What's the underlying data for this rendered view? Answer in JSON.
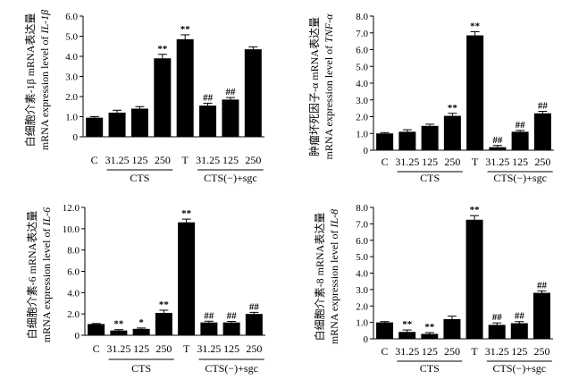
{
  "chart_data": [
    {
      "type": "bar",
      "id": "il1b",
      "ylabel_cn": "白细胞介素-1β mRNA表达量",
      "ylabel_en_prefix": "mRNA expression level of ",
      "ylabel_en_gene": "IL-1β",
      "ylim": [
        0,
        6
      ],
      "yticks": [
        "0",
        "1.0",
        "2.0",
        "3.0",
        "4.0",
        "5.0",
        "6.0"
      ],
      "categories": [
        "C",
        "31.25",
        "125",
        "250",
        "T",
        "31.25",
        "125",
        "250"
      ],
      "values": [
        0.95,
        1.2,
        1.4,
        3.9,
        4.85,
        1.55,
        1.85,
        4.35
      ],
      "errors": [
        0.05,
        0.12,
        0.1,
        0.2,
        0.22,
        0.12,
        0.1,
        0.12
      ],
      "significance": [
        "",
        "",
        "",
        "**",
        "**",
        "##",
        "##",
        ""
      ],
      "groups": [
        {
          "label": "CTS",
          "from": 1,
          "to": 3
        },
        {
          "label": "CTS(−)+sgc",
          "from": 5,
          "to": 7
        }
      ]
    },
    {
      "type": "bar",
      "id": "tnfa",
      "ylabel_cn": "肿瘤坏死因子-α mRNA表达量",
      "ylabel_en_prefix": "mRNA expression level of ",
      "ylabel_en_gene": "TNF-α",
      "ylim": [
        0,
        8
      ],
      "yticks": [
        "0",
        "1.0",
        "2.0",
        "3.0",
        "4.0",
        "5.0",
        "6.0",
        "7.0",
        "8.0"
      ],
      "categories": [
        "C",
        "31.25",
        "125",
        "250",
        "T",
        "31.25",
        "125",
        "250"
      ],
      "values": [
        1.0,
        1.1,
        1.45,
        2.05,
        6.85,
        0.18,
        1.1,
        2.2
      ],
      "errors": [
        0.05,
        0.12,
        0.1,
        0.15,
        0.22,
        0.1,
        0.08,
        0.12
      ],
      "significance": [
        "",
        "",
        "",
        "**",
        "**",
        "##",
        "##",
        "##"
      ],
      "groups": [
        {
          "label": "CTS",
          "from": 1,
          "to": 3
        },
        {
          "label": "CTS(−)+sgc",
          "from": 5,
          "to": 7
        }
      ]
    },
    {
      "type": "bar",
      "id": "il6",
      "ylabel_cn": "白细胞介素-6 mRNA表达量",
      "ylabel_en_prefix": "mRNA expression level of ",
      "ylabel_en_gene": "IL-6",
      "ylim": [
        0,
        12
      ],
      "yticks": [
        "0",
        "2.0",
        "4.0",
        "6.0",
        "8.0",
        "10.0",
        "12.0"
      ],
      "categories": [
        "C",
        "31.25",
        "125",
        "250",
        "T",
        "31.25",
        "125",
        "250"
      ],
      "values": [
        1.05,
        0.45,
        0.6,
        2.1,
        10.6,
        1.2,
        1.2,
        2.0
      ],
      "errors": [
        0.05,
        0.08,
        0.08,
        0.25,
        0.3,
        0.12,
        0.1,
        0.15
      ],
      "significance": [
        "",
        "**",
        "*",
        "**",
        "**",
        "##",
        "##",
        "##"
      ],
      "groups": [
        {
          "label": "CTS",
          "from": 1,
          "to": 3
        },
        {
          "label": "CTS(−)+sgc",
          "from": 5,
          "to": 7
        }
      ]
    },
    {
      "type": "bar",
      "id": "il8",
      "ylabel_cn": "白细胞介素-8 mRNA表达量",
      "ylabel_en_prefix": "mRNA expression level of ",
      "ylabel_en_gene": "IL-8",
      "ylim": [
        0,
        8
      ],
      "yticks": [
        "0",
        "1.0",
        "2.0",
        "3.0",
        "4.0",
        "5.0",
        "6.0",
        "7.0",
        "8.0"
      ],
      "categories": [
        "C",
        "31.25",
        "125",
        "250",
        "T",
        "31.25",
        "125",
        "250"
      ],
      "values": [
        1.0,
        0.42,
        0.3,
        1.2,
        7.25,
        0.85,
        0.95,
        2.8
      ],
      "errors": [
        0.05,
        0.12,
        0.08,
        0.18,
        0.25,
        0.12,
        0.1,
        0.12
      ],
      "significance": [
        "",
        "**",
        "**",
        "",
        "**",
        "##",
        "##",
        "##"
      ],
      "groups": [
        {
          "label": "CTS",
          "from": 1,
          "to": 3
        },
        {
          "label": "CTS(−)+sgc",
          "from": 5,
          "to": 7
        }
      ]
    }
  ],
  "colors": {
    "bar": "#000000",
    "axis": "#000000",
    "background": "#ffffff"
  }
}
